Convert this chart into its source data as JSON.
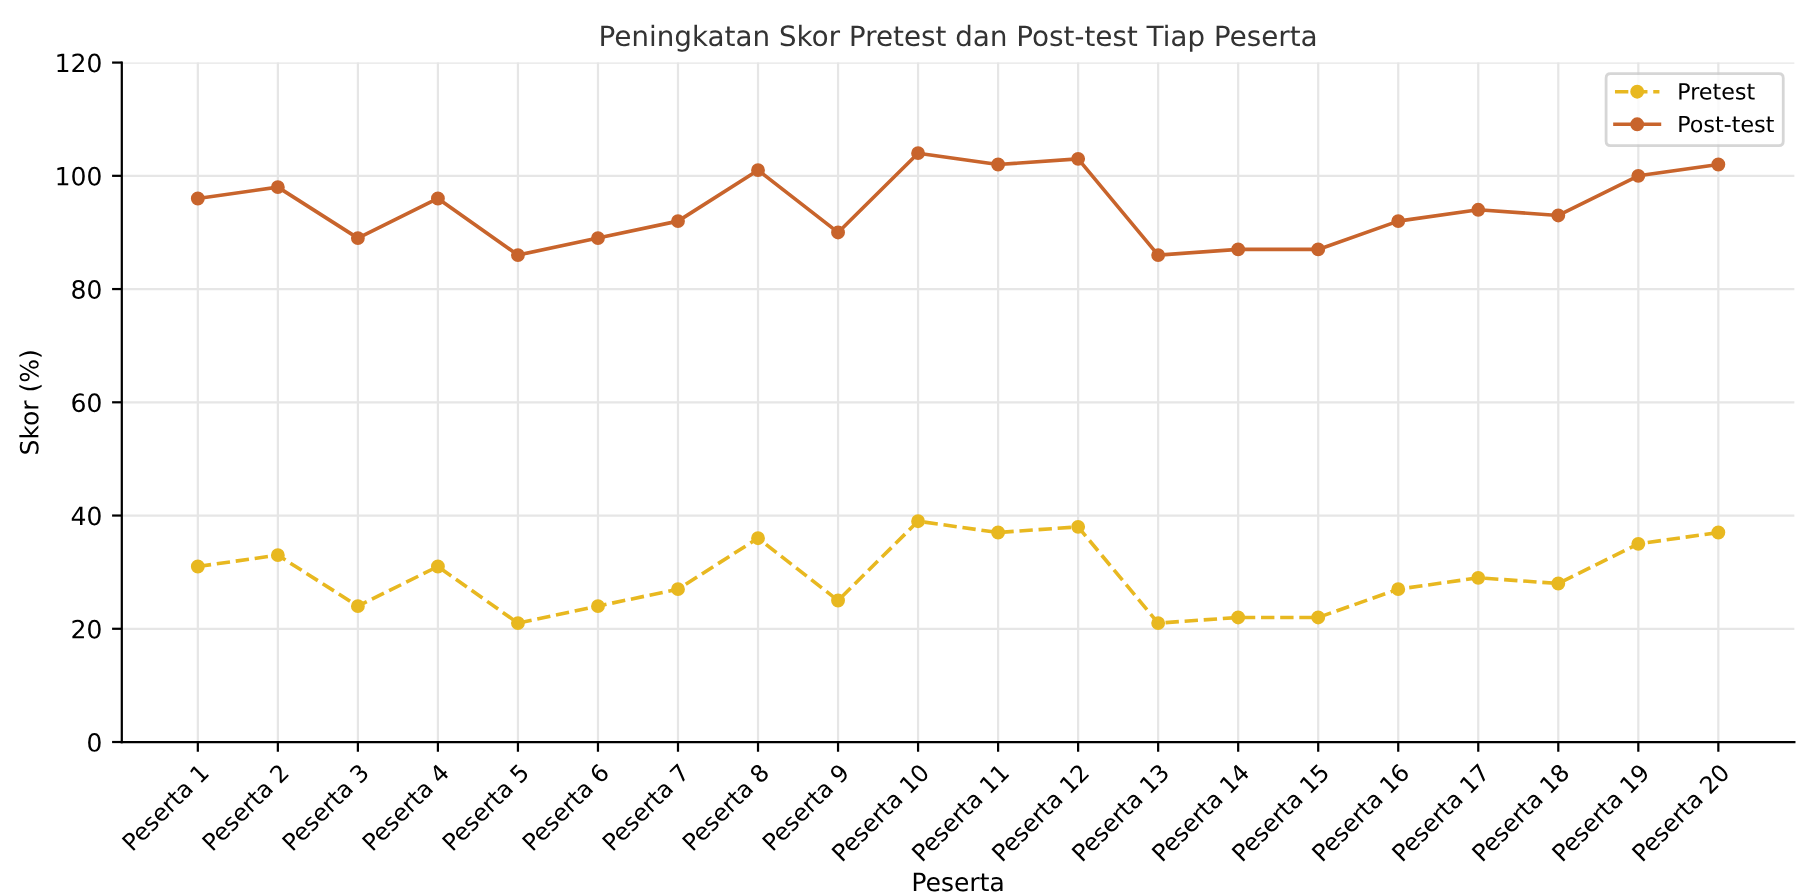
{
  "chart_data": {
    "type": "line",
    "title": "Peningkatan Skor Pretest dan Post-test Tiap Peserta",
    "xlabel": "Peserta",
    "ylabel": "Skor (%)",
    "categories": [
      "Peserta 1",
      "Peserta 2",
      "Peserta 3",
      "Peserta 4",
      "Peserta 5",
      "Peserta 6",
      "Peserta 7",
      "Peserta 8",
      "Peserta 9",
      "Peserta 10",
      "Peserta 11",
      "Peserta 12",
      "Peserta 13",
      "Peserta 14",
      "Peserta 15",
      "Peserta 16",
      "Peserta 17",
      "Peserta 18",
      "Peserta 19",
      "Peserta 20"
    ],
    "series": [
      {
        "name": "Pretest",
        "color": "#e8b820",
        "line_style": "dashed",
        "values": [
          31,
          33,
          24,
          31,
          21,
          24,
          27,
          36,
          25,
          39,
          37,
          38,
          21,
          22,
          22,
          27,
          29,
          28,
          35,
          37
        ]
      },
      {
        "name": "Post-test",
        "color": "#c8642c",
        "line_style": "solid",
        "values": [
          96,
          98,
          89,
          96,
          86,
          89,
          92,
          101,
          90,
          104,
          102,
          103,
          86,
          87,
          87,
          92,
          94,
          93,
          100,
          102
        ]
      }
    ],
    "ylim": [
      0,
      120
    ],
    "yticks": [
      0,
      20,
      40,
      60,
      80,
      100,
      120
    ],
    "grid": true,
    "legend": "top right",
    "marker": "circle"
  }
}
